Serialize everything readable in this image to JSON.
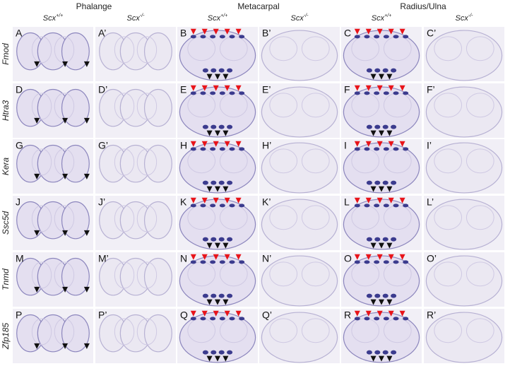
{
  "groups": [
    "Phalange",
    "Metacarpal",
    "Radius/Ulna"
  ],
  "genotypes": [
    {
      "name": "Scx",
      "sup": "+/+"
    },
    {
      "name": "Scx",
      "sup": "-/-"
    },
    {
      "name": "Scx",
      "sup": "+/+"
    },
    {
      "name": "Scx",
      "sup": "-/-"
    },
    {
      "name": "Scx",
      "sup": "+/+"
    },
    {
      "name": "Scx",
      "sup": "-/-"
    }
  ],
  "rows": [
    {
      "gene": "Fmod",
      "panels": [
        "A",
        "A’",
        "B",
        "B’",
        "C",
        "C’"
      ]
    },
    {
      "gene": "Htra3",
      "panels": [
        "D",
        "D’",
        "E",
        "E’",
        "F",
        "F’"
      ]
    },
    {
      "gene": "Kera",
      "panels": [
        "G",
        "G’",
        "H",
        "H’",
        "I",
        "I’"
      ]
    },
    {
      "gene": "Ssc5d",
      "panels": [
        "J",
        "J’",
        "K",
        "K’",
        "L",
        "L’"
      ]
    },
    {
      "gene": "Tnmd",
      "panels": [
        "M",
        "M’",
        "N",
        "N’",
        "O",
        "O’"
      ]
    },
    {
      "gene": "Zfp185",
      "panels": [
        "P",
        "P’",
        "Q",
        "Q’",
        "R",
        "R’"
      ]
    }
  ]
}
